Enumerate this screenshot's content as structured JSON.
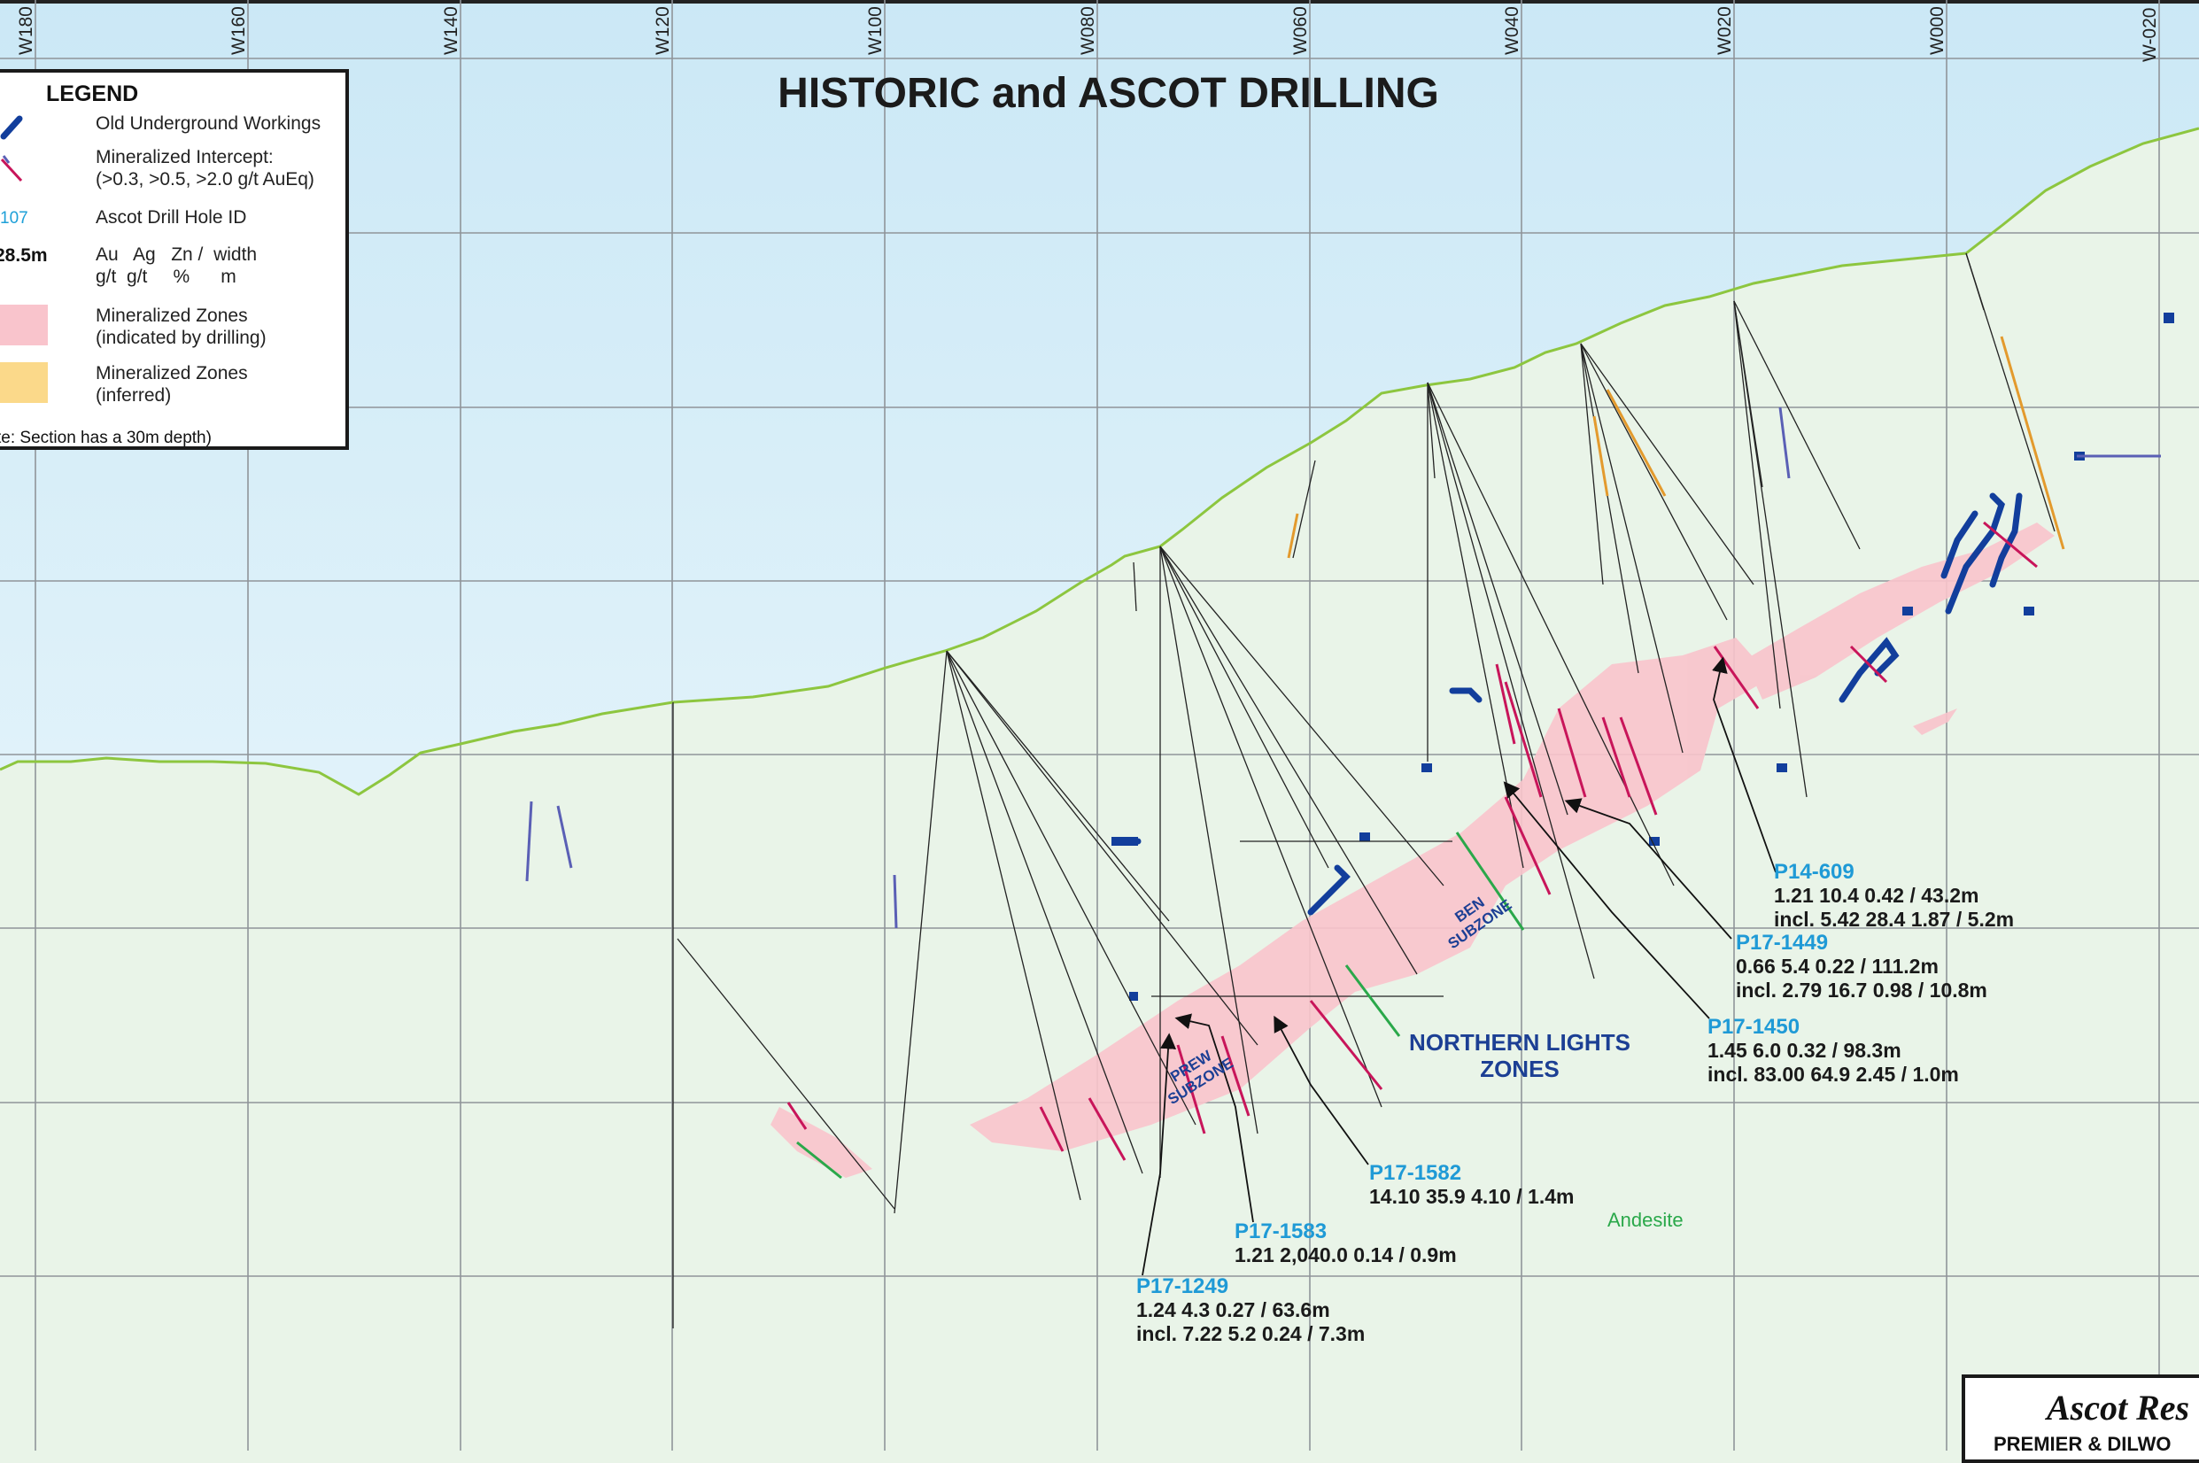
{
  "map": {
    "title": "HISTORIC and ASCOT DRILLING",
    "grid_labels": [
      "W180",
      "W160",
      "W140",
      "W120",
      "W100",
      "W080",
      "W060",
      "W040",
      "W020",
      "W000",
      "W-020"
    ],
    "colors": {
      "sky_top": "#cfeaf7",
      "sky_bottom": "#f2fafd",
      "ground": "#e9f4e8",
      "topography": "#8dc63f",
      "grid": "#8f9499",
      "zone_drilled": "#f9c4cc",
      "zone_inferred": "#fbd98a",
      "workings": "#123e9c",
      "intercept": "#c8155a",
      "hole_id": "#1f9ad6",
      "annotation_blue": "#1c3f94",
      "rock_label": "#2aa84a"
    }
  },
  "legend": {
    "title": "LEGEND",
    "items": [
      {
        "label": "Old Underground Workings",
        "icon": "workings-icon"
      },
      {
        "label": "Mineralized Intercept:",
        "sub": "(>0.3, >0.5, >2.0 g/t AuEq)",
        "icon": "intercept-icon"
      },
      {
        "sample": "107",
        "label": "Ascot Drill Hole ID"
      },
      {
        "sample": "28.5m",
        "label": "Au   Ag   Zn /  width",
        "sub": "g/t  g/t     %      m"
      },
      {
        "label": "Mineralized Zones",
        "sub": "(indicated by drilling)"
      },
      {
        "label": "Mineralized Zones",
        "sub": "(inferred)"
      }
    ],
    "note": "te: Section has a 30m depth)"
  },
  "zone_labels": {
    "northern_lights": [
      "NORTHERN LIGHTS",
      "ZONES"
    ],
    "ben": [
      "BEN",
      "SUBZONE"
    ],
    "prew": [
      "PREW",
      "SUBZONE"
    ],
    "rock": "Andesite"
  },
  "callouts": [
    {
      "id": "P14-609",
      "lines": [
        "1.21  10.4  0.42 / 43.2m",
        "incl.  5.42  28.4  1.87 / 5.2m"
      ]
    },
    {
      "id": "P17-1449",
      "lines": [
        "0.66  5.4  0.22 / 111.2m",
        "incl.  2.79  16.7  0.98 / 10.8m"
      ]
    },
    {
      "id": "P17-1450",
      "lines": [
        "1.45  6.0  0.32 / 98.3m",
        "incl.  83.00  64.9  2.45 / 1.0m"
      ]
    },
    {
      "id": "P17-1582",
      "lines": [
        "14.10  35.9  4.10 / 1.4m"
      ]
    },
    {
      "id": "P17-1583",
      "lines": [
        "1.21  2,040.0  0.14 / 0.9m"
      ]
    },
    {
      "id": "P17-1249",
      "lines": [
        "1.24  4.3  0.27 / 63.6m",
        "incl.  7.22  5.2  0.24 / 7.3m"
      ]
    }
  ],
  "company": {
    "name": "Ascot Res",
    "project": "PREMIER & DILWO"
  }
}
